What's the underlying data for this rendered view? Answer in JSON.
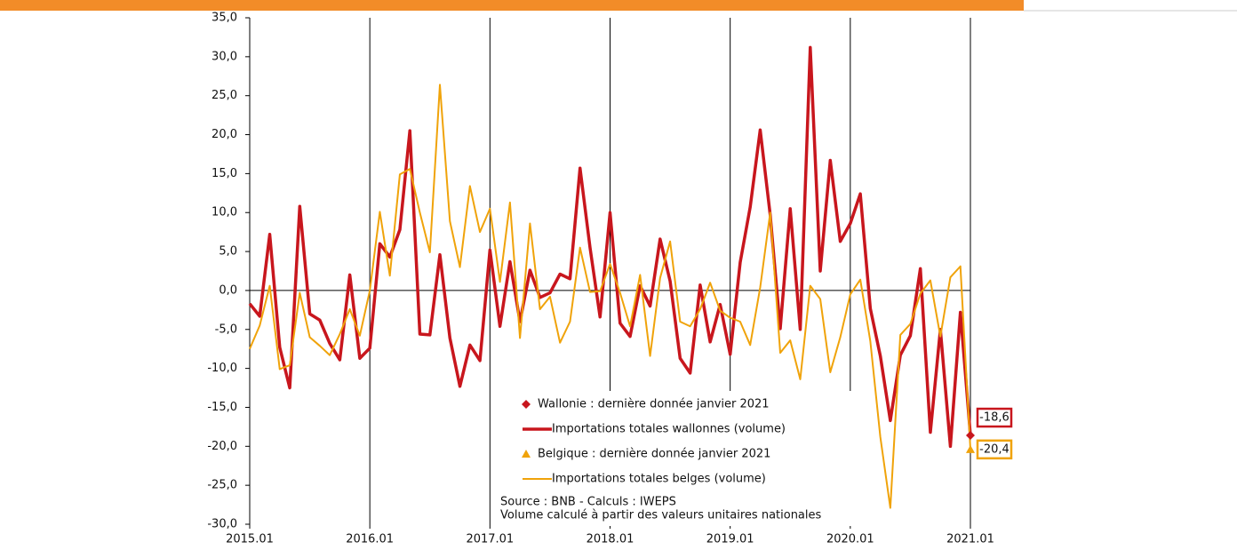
{
  "chart_data": {
    "type": "line",
    "categories": [
      "2015.01",
      null,
      null,
      null,
      null,
      null,
      null,
      null,
      null,
      null,
      null,
      null,
      "2016.01",
      null,
      null,
      null,
      null,
      null,
      null,
      null,
      null,
      null,
      null,
      null,
      "2017.01",
      null,
      null,
      null,
      null,
      null,
      null,
      null,
      null,
      null,
      null,
      null,
      "2018.01",
      null,
      null,
      null,
      null,
      null,
      null,
      null,
      null,
      null,
      null,
      null,
      "2019.01",
      null,
      null,
      null,
      null,
      null,
      null,
      null,
      null,
      null,
      null,
      null,
      "2020.01",
      null,
      null,
      null,
      null,
      null,
      null,
      null,
      null,
      null,
      null,
      null,
      "2021.01"
    ],
    "series": [
      {
        "name": "Importations totales wallonnes (volume)",
        "color": "#c8161d",
        "width": 3.5,
        "values": [
          -1.7,
          -3.3,
          7.2,
          -7.3,
          -12.5,
          10.8,
          -3.0,
          -3.8,
          -6.8,
          -8.9,
          2.0,
          -8.7,
          -7.4,
          6.0,
          4.3,
          7.8,
          20.5,
          -5.6,
          -5.7,
          4.6,
          -6.1,
          -12.3,
          -7.0,
          -9.0,
          5.2,
          -4.6,
          3.7,
          -4.0,
          2.6,
          -0.9,
          -0.3,
          2.1,
          1.5,
          15.7,
          5.5,
          -3.4,
          10.0,
          -4.2,
          -5.9,
          0.6,
          -2.0,
          6.6,
          1.2,
          -8.7,
          -10.6,
          0.7,
          -6.6,
          -1.8,
          -8.2,
          3.6,
          10.7,
          20.6,
          9.7,
          -4.9,
          10.5,
          -5.0,
          31.2,
          2.5,
          16.7,
          6.3,
          8.6,
          12.4,
          -2.3,
          -8.4,
          -16.7,
          -8.3,
          -5.8,
          2.8,
          -18.2,
          -5.0,
          -20.0,
          -2.8,
          -18.6
        ],
        "marker": {
          "name": "Wallonie : dernière donnée janvier 2021",
          "shape": "diamond",
          "value": -18.6,
          "value_label": "-18,6"
        }
      },
      {
        "name": "Importations totales belges (volume)",
        "color": "#f0a30a",
        "width": 2,
        "values": [
          -7.5,
          -4.5,
          0.6,
          -10.1,
          -9.6,
          -0.3,
          -6.0,
          -7.1,
          -8.3,
          -5.6,
          -2.4,
          -5.8,
          0.0,
          10.1,
          1.9,
          14.9,
          15.6,
          10.0,
          4.9,
          26.4,
          8.9,
          3.0,
          13.4,
          7.5,
          10.5,
          1.1,
          11.3,
          -6.1,
          8.6,
          -2.4,
          -0.8,
          -6.7,
          -4.0,
          5.5,
          -0.2,
          -0.1,
          3.4,
          -0.3,
          -4.6,
          2.0,
          -8.4,
          1.6,
          6.3,
          -4.0,
          -4.6,
          -2.4,
          1.0,
          -2.6,
          -3.5,
          -4.0,
          -7.0,
          0.4,
          10.0,
          -8.0,
          -6.4,
          -11.4,
          0.6,
          -1.1,
          -10.5,
          -6.0,
          -0.5,
          1.4,
          -6.5,
          -18.8,
          -27.9,
          -5.7,
          -4.3,
          -0.4,
          1.3,
          -5.9,
          1.7,
          3.1,
          -20.4
        ],
        "marker": {
          "name": "Belgique : dernière donnée janvier 2021",
          "shape": "triangle",
          "value": -20.4,
          "value_label": "-20,4"
        }
      }
    ],
    "ylim": [
      -30,
      35
    ],
    "yticks": [
      {
        "value": -30,
        "label": "-30,0"
      },
      {
        "value": -25,
        "label": "-25,0"
      },
      {
        "value": -20,
        "label": "-20,0"
      },
      {
        "value": -15,
        "label": "-15,0"
      },
      {
        "value": -10,
        "label": "-10,0"
      },
      {
        "value": -5,
        "label": "-5,0"
      },
      {
        "value": 0,
        "label": "0,0"
      },
      {
        "value": 5,
        "label": "5,0"
      },
      {
        "value": 10,
        "label": "10,0"
      },
      {
        "value": 15,
        "label": "15,0"
      },
      {
        "value": 20,
        "label": "20,0"
      },
      {
        "value": 25,
        "label": "25,0"
      },
      {
        "value": 30,
        "label": "30,0"
      },
      {
        "value": 35,
        "label": "35,0"
      }
    ],
    "source": [
      "Source : BNB - Calculs : IWEPS",
      "Volume calculé à partir des valeurs unitaires nationales"
    ]
  }
}
